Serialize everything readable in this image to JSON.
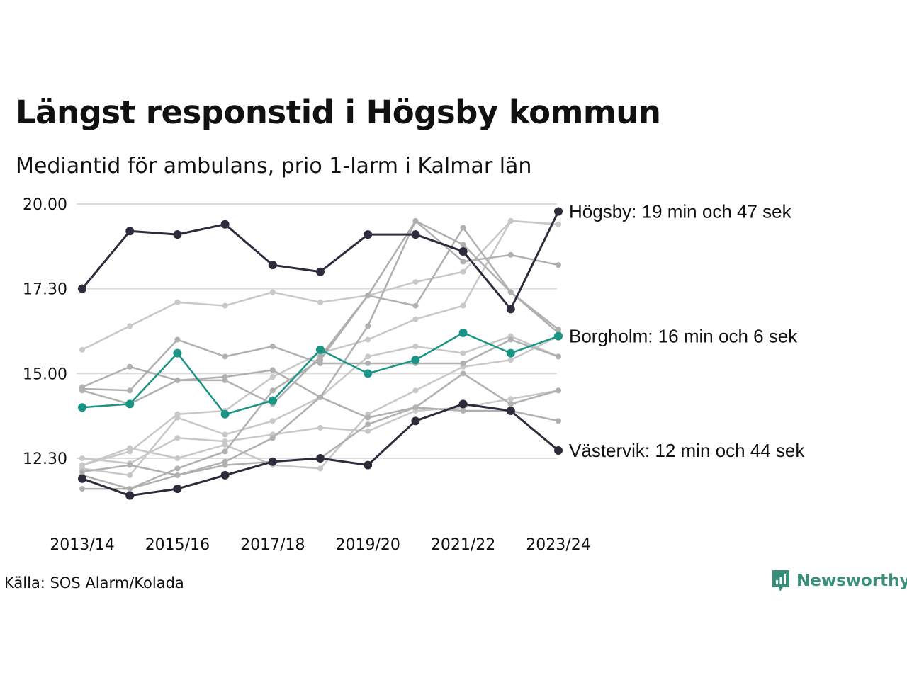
{
  "title": "Längst responstid i Högsby kommun",
  "subtitle": "Mediantid för ambulans, prio 1-larm i Kalmar län",
  "source": "Källa: SOS Alarm/Kolada",
  "brand": {
    "name": "Newsworthy",
    "icon": "newsworthy-logo-icon",
    "color": "#3a8f7a"
  },
  "chart_data": {
    "type": "line",
    "x": [
      "2013/14",
      "2014/15",
      "2015/16",
      "2016/17",
      "2017/18",
      "2018/19",
      "2019/20",
      "2020/21",
      "2021/22",
      "2022/23",
      "2023/24"
    ],
    "x_tick_labels": [
      "2013/14",
      "2015/16",
      "2017/18",
      "2019/20",
      "2021/22",
      "2023/24"
    ],
    "y_tick_labels": [
      "20.00",
      "17.30",
      "15.00",
      "12.30"
    ],
    "y_tick_values": [
      20.0,
      17.5,
      15.0,
      12.5
    ],
    "ylim": [
      10.5,
      20.6
    ],
    "grid": true,
    "colors": {
      "highlight": "#2c2c3c",
      "accent": "#1a9484",
      "background_series": [
        "#b0b0b0",
        "#c8c8c8"
      ]
    },
    "series": [
      {
        "values": [
          12.5,
          12.35,
          13.1,
          13.0,
          13.2,
          13.4,
          13.3,
          13.9,
          14.0,
          14.25,
          14.5
        ],
        "highlight": "background",
        "color": "#c8c8c8"
      },
      {
        "values": [
          12.3,
          12.8,
          12.5,
          12.9,
          12.3,
          12.2,
          13.8,
          14.5,
          15.2,
          15.4,
          16.1
        ],
        "highlight": "background",
        "color": "#c8c8c8"
      },
      {
        "values": [
          12.3,
          12.7,
          13.8,
          13.9,
          14.9,
          15.6,
          16.0,
          16.6,
          17.0,
          19.5,
          19.4
        ],
        "highlight": "background",
        "color": "#c8c8c8"
      },
      {
        "values": [
          15.7,
          16.4,
          17.1,
          17.0,
          17.4,
          17.1,
          17.3,
          17.7,
          18.0,
          19.5,
          19.4
        ],
        "highlight": "background",
        "color": "#c8c8c8"
      },
      {
        "values": [
          12.2,
          12.0,
          13.7,
          13.2,
          13.6,
          14.3,
          15.5,
          15.8,
          15.6,
          16.1,
          15.5
        ],
        "highlight": "background",
        "color": "#c8c8c8"
      },
      {
        "values": [
          11.6,
          11.6,
          12.0,
          12.4,
          13.1,
          14.3,
          16.4,
          19.5,
          18.8,
          17.4,
          16.3
        ],
        "highlight": "background",
        "color": "#b0b0b0"
      },
      {
        "values": [
          14.6,
          15.2,
          14.8,
          14.8,
          14.1,
          15.5,
          17.3,
          17.0,
          19.3,
          17.4,
          16.2
        ],
        "highlight": "background",
        "color": "#b0b0b0"
      },
      {
        "values": [
          14.5,
          14.1,
          14.8,
          14.9,
          15.1,
          14.3,
          13.7,
          14.0,
          15.0,
          14.1,
          14.5
        ],
        "highlight": "background",
        "color": "#b0b0b0"
      },
      {
        "values": [
          12.0,
          11.6,
          12.2,
          12.7,
          14.5,
          15.4,
          17.3,
          19.5,
          18.3,
          18.5,
          18.2
        ],
        "highlight": "background",
        "color": "#b0b0b0"
      },
      {
        "values": [
          12.1,
          12.3,
          12.0,
          12.3,
          12.4,
          12.5,
          13.5,
          14.0,
          13.9,
          13.9,
          13.6
        ],
        "highlight": "background",
        "color": "#b0b0b0"
      },
      {
        "values": [
          14.55,
          14.5,
          16.0,
          15.5,
          15.8,
          15.3,
          15.3,
          15.3,
          15.3,
          16.0,
          15.5
        ],
        "highlight": "background",
        "color": "#b0b0b0"
      },
      {
        "values": [
          14.0,
          14.1,
          15.6,
          13.8,
          14.2,
          15.7,
          15.0,
          15.4,
          16.2,
          15.6,
          16.1
        ],
        "highlight": "accent",
        "label": "Borgholm: 16 min och 6 sek"
      },
      {
        "values": [
          11.9,
          11.4,
          11.6,
          12.0,
          12.4,
          12.5,
          12.3,
          13.6,
          14.1,
          13.9,
          12.73
        ],
        "highlight": "dark",
        "label": "Västervik: 12 min och 44 sek"
      },
      {
        "values": [
          17.5,
          19.2,
          19.1,
          19.4,
          18.2,
          18.0,
          19.1,
          19.1,
          18.6,
          16.9,
          19.78
        ],
        "highlight": "dark",
        "label": "Högsby: 19 min och 47 sek"
      }
    ]
  }
}
